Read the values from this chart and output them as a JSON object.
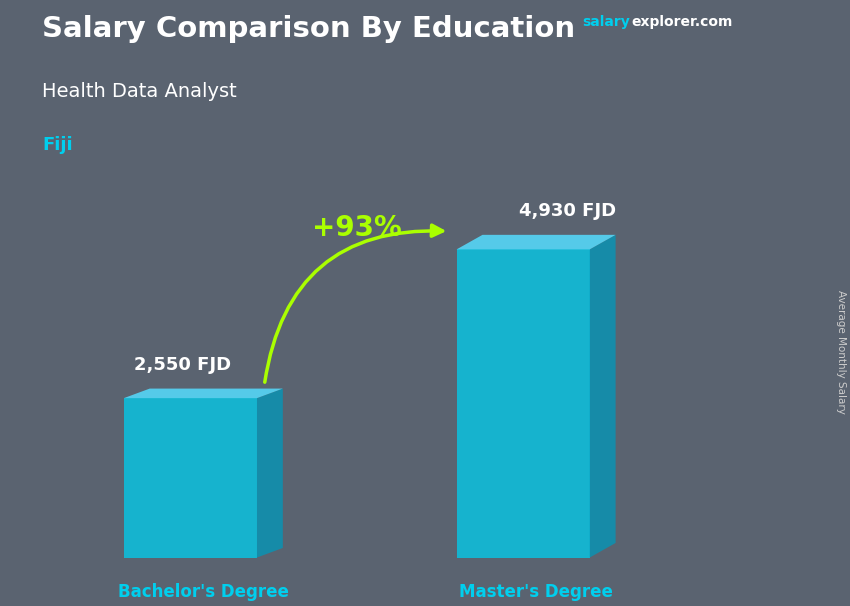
{
  "title_main": "Salary Comparison By Education",
  "title_sub": "Health Data Analyst",
  "title_country": "Fiji",
  "watermark_salary": "salary",
  "watermark_rest": "explorer.com",
  "ylabel_side": "Average Monthly Salary",
  "categories": [
    "Bachelor's Degree",
    "Master's Degree"
  ],
  "values": [
    2550,
    4930
  ],
  "value_labels": [
    "2,550 FJD",
    "4,930 FJD"
  ],
  "pct_change": "+93%",
  "bar_color_face": "#00CFEE",
  "bar_color_side": "#0099BB",
  "bar_color_top": "#55DDFF",
  "bar_alpha": 0.75,
  "bg_color": "#5a6370",
  "title_color": "#ffffff",
  "sub_title_color": "#ffffff",
  "country_color": "#00CFEE",
  "label_color": "#ffffff",
  "cat_label_color": "#00CFEE",
  "pct_color": "#aaff00",
  "arrow_color": "#aaff00",
  "watermark_salary_color": "#00CFEE",
  "watermark_rest_color": "#ffffff"
}
